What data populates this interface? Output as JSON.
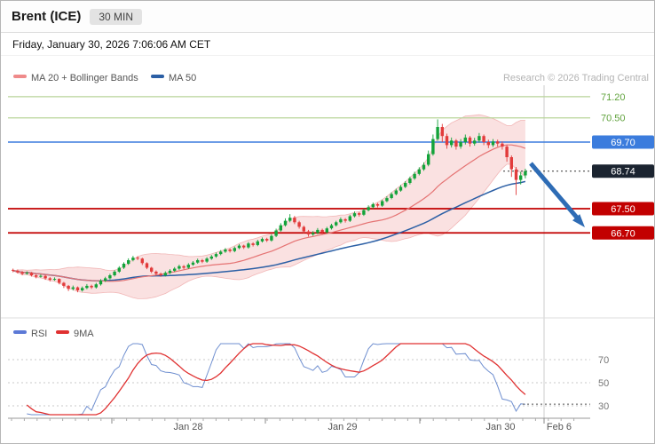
{
  "window": {
    "title": "Brent (ICE)",
    "interval": "30 MIN",
    "date_line": "Friday, January 30, 2026 7:06:06 AM CET",
    "copyright": "Research © 2026 Trading Central"
  },
  "legend": {
    "ma20_label": "MA 20 + Bollinger Bands",
    "ma50_label": "MA 50",
    "rsi_label": "RSI",
    "rsi_ma_label": "9MA"
  },
  "colors": {
    "up_candle": "#13a33a",
    "down_candle": "#e23b3b",
    "ma20": "#e57373",
    "bollinger_fill": "#f2b0b0",
    "ma50": "#2b5fa5",
    "target_text": "#61a33e",
    "target_line": "#b9d49a",
    "pivot": "#3b7cdd",
    "last_badge": "#1b2430",
    "support": "#c20000",
    "rsi_line": "#6f8fd0",
    "rsi_ma": "#e03131",
    "arrow": "#2e6cb5"
  },
  "chart_data": {
    "type": "candlestick",
    "symbol": "Brent (ICE)",
    "interval": "30 MIN",
    "indicators": [
      "MA 20",
      "Bollinger Bands (20, 2)",
      "MA 50",
      "RSI",
      "9MA of RSI"
    ],
    "x_axis_labels": [
      "Jan 28",
      "Jan 29",
      "Jan 30",
      "Feb 6"
    ],
    "rsi_ticks": [
      70,
      50,
      30
    ],
    "last_price": 68.74,
    "trend_annotation": "down-arrow",
    "levels": [
      {
        "label": "71.20",
        "price": 71.2,
        "style": "target"
      },
      {
        "label": "70.50",
        "price": 70.5,
        "style": "target"
      },
      {
        "label": "69.70",
        "price": 69.7,
        "style": "pivot"
      },
      {
        "label": "68.74",
        "price": 68.74,
        "style": "last"
      },
      {
        "label": "67.50",
        "price": 67.5,
        "style": "support"
      },
      {
        "label": "66.70",
        "price": 66.7,
        "style": "support"
      }
    ],
    "candles_ohlc": [
      [
        65.48,
        65.52,
        65.4,
        65.45
      ],
      [
        65.45,
        65.49,
        65.36,
        65.4
      ],
      [
        65.4,
        65.44,
        65.3,
        65.35
      ],
      [
        65.35,
        65.43,
        65.32,
        65.38
      ],
      [
        65.38,
        65.41,
        65.26,
        65.3
      ],
      [
        65.3,
        65.34,
        65.2,
        65.25
      ],
      [
        65.25,
        65.33,
        65.22,
        65.28
      ],
      [
        65.28,
        65.31,
        65.15,
        65.2
      ],
      [
        65.2,
        65.24,
        65.1,
        65.15
      ],
      [
        65.15,
        65.23,
        65.12,
        65.18
      ],
      [
        65.18,
        65.2,
        65.0,
        65.05
      ],
      [
        65.05,
        65.08,
        64.88,
        64.95
      ],
      [
        64.95,
        64.98,
        64.78,
        64.85
      ],
      [
        64.85,
        64.96,
        64.8,
        64.9
      ],
      [
        64.9,
        64.93,
        64.74,
        64.8
      ],
      [
        64.8,
        64.93,
        64.76,
        64.88
      ],
      [
        64.88,
        65.01,
        64.84,
        64.95
      ],
      [
        64.95,
        64.99,
        64.85,
        64.9
      ],
      [
        64.9,
        65.05,
        64.86,
        65.0
      ],
      [
        65.0,
        65.17,
        64.96,
        65.12
      ],
      [
        65.12,
        65.25,
        65.08,
        65.2
      ],
      [
        65.2,
        65.35,
        65.16,
        65.3
      ],
      [
        65.3,
        65.47,
        65.26,
        65.42
      ],
      [
        65.42,
        65.6,
        65.38,
        65.55
      ],
      [
        65.55,
        65.73,
        65.51,
        65.68
      ],
      [
        65.68,
        65.86,
        65.64,
        65.8
      ],
      [
        65.8,
        65.94,
        65.76,
        65.88
      ],
      [
        65.88,
        65.93,
        65.8,
        65.85
      ],
      [
        65.85,
        65.88,
        65.64,
        65.7
      ],
      [
        65.7,
        65.73,
        65.5,
        65.55
      ],
      [
        65.55,
        65.58,
        65.37,
        65.42
      ],
      [
        65.42,
        65.46,
        65.3,
        65.35
      ],
      [
        65.35,
        65.39,
        65.25,
        65.3
      ],
      [
        65.3,
        65.43,
        65.26,
        65.38
      ],
      [
        65.38,
        65.5,
        65.34,
        65.45
      ],
      [
        65.45,
        65.57,
        65.41,
        65.52
      ],
      [
        65.52,
        65.65,
        65.48,
        65.6
      ],
      [
        65.6,
        65.64,
        65.5,
        65.55
      ],
      [
        65.55,
        65.7,
        65.51,
        65.65
      ],
      [
        65.65,
        65.77,
        65.61,
        65.72
      ],
      [
        65.72,
        65.85,
        65.68,
        65.8
      ],
      [
        65.8,
        65.84,
        65.7,
        65.75
      ],
      [
        65.75,
        65.9,
        65.71,
        65.85
      ],
      [
        65.85,
        65.97,
        65.81,
        65.92
      ],
      [
        65.92,
        66.05,
        65.88,
        66.0
      ],
      [
        66.0,
        66.13,
        65.96,
        66.08
      ],
      [
        66.08,
        66.2,
        66.04,
        66.15
      ],
      [
        66.15,
        66.19,
        66.05,
        66.1
      ],
      [
        66.1,
        66.25,
        66.06,
        66.2
      ],
      [
        66.2,
        66.33,
        66.16,
        66.28
      ],
      [
        66.28,
        66.31,
        66.17,
        66.22
      ],
      [
        66.22,
        66.4,
        66.18,
        66.35
      ],
      [
        66.35,
        66.39,
        66.25,
        66.3
      ],
      [
        66.3,
        66.47,
        66.26,
        66.42
      ],
      [
        66.42,
        66.55,
        66.38,
        66.5
      ],
      [
        66.5,
        66.54,
        66.4,
        66.45
      ],
      [
        66.45,
        66.66,
        66.41,
        66.6
      ],
      [
        66.6,
        66.84,
        66.56,
        66.78
      ],
      [
        66.78,
        67.02,
        66.74,
        66.95
      ],
      [
        66.95,
        67.18,
        66.91,
        67.1
      ],
      [
        67.1,
        67.32,
        67.05,
        67.2
      ],
      [
        67.2,
        67.26,
        66.99,
        67.05
      ],
      [
        67.05,
        67.1,
        66.84,
        66.9
      ],
      [
        66.9,
        66.94,
        66.69,
        66.75
      ],
      [
        66.75,
        66.8,
        66.58,
        66.65
      ],
      [
        66.65,
        66.76,
        66.6,
        66.7
      ],
      [
        66.7,
        66.86,
        66.66,
        66.8
      ],
      [
        66.8,
        66.84,
        66.66,
        66.72
      ],
      [
        66.72,
        66.9,
        66.68,
        66.85
      ],
      [
        66.85,
        67.0,
        66.81,
        66.95
      ],
      [
        66.95,
        67.1,
        66.91,
        67.05
      ],
      [
        67.05,
        67.21,
        67.01,
        67.15
      ],
      [
        67.15,
        67.19,
        67.04,
        67.1
      ],
      [
        67.1,
        67.3,
        67.06,
        67.25
      ],
      [
        67.25,
        67.41,
        67.21,
        67.35
      ],
      [
        67.35,
        67.39,
        67.24,
        67.3
      ],
      [
        67.3,
        67.5,
        67.26,
        67.45
      ],
      [
        67.45,
        67.61,
        67.41,
        67.55
      ],
      [
        67.55,
        67.7,
        67.5,
        67.65
      ],
      [
        67.65,
        67.69,
        67.54,
        67.6
      ],
      [
        67.6,
        67.8,
        67.56,
        67.75
      ],
      [
        67.75,
        67.91,
        67.71,
        67.85
      ],
      [
        67.85,
        68.04,
        67.81,
        67.98
      ],
      [
        67.98,
        68.16,
        67.94,
        68.1
      ],
      [
        68.1,
        68.28,
        68.06,
        68.22
      ],
      [
        68.22,
        68.41,
        68.18,
        68.35
      ],
      [
        68.35,
        68.56,
        68.3,
        68.5
      ],
      [
        68.5,
        68.72,
        68.45,
        68.65
      ],
      [
        68.65,
        68.87,
        68.6,
        68.8
      ],
      [
        68.8,
        69.03,
        68.75,
        68.95
      ],
      [
        68.95,
        69.42,
        68.9,
        69.3
      ],
      [
        69.3,
        69.95,
        69.25,
        69.8
      ],
      [
        69.8,
        70.45,
        69.74,
        70.2
      ],
      [
        70.2,
        70.3,
        69.7,
        69.9
      ],
      [
        69.9,
        69.98,
        69.48,
        69.6
      ],
      [
        69.6,
        69.85,
        69.52,
        69.75
      ],
      [
        69.75,
        69.8,
        69.45,
        69.55
      ],
      [
        69.55,
        69.8,
        69.48,
        69.7
      ],
      [
        69.7,
        69.95,
        69.62,
        69.85
      ],
      [
        69.85,
        69.9,
        69.55,
        69.65
      ],
      [
        69.65,
        69.84,
        69.58,
        69.75
      ],
      [
        69.75,
        70.0,
        69.68,
        69.9
      ],
      [
        69.9,
        69.95,
        69.6,
        69.7
      ],
      [
        69.7,
        69.78,
        69.5,
        69.6
      ],
      [
        69.6,
        69.8,
        69.54,
        69.72
      ],
      [
        69.72,
        69.78,
        69.55,
        69.65
      ],
      [
        69.65,
        69.72,
        69.45,
        69.55
      ],
      [
        69.55,
        69.6,
        69.05,
        69.2
      ],
      [
        69.2,
        69.26,
        68.55,
        68.8
      ],
      [
        68.8,
        68.88,
        67.95,
        68.45
      ],
      [
        68.45,
        68.72,
        68.3,
        68.6
      ],
      [
        68.6,
        68.82,
        68.5,
        68.74
      ]
    ]
  }
}
